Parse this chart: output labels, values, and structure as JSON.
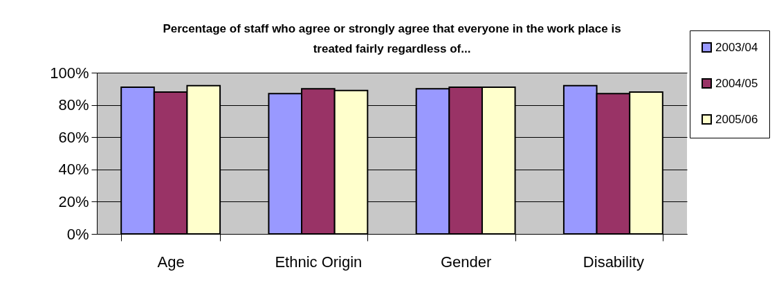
{
  "chart_data": {
    "type": "bar",
    "title": "Percentage of staff who agree or strongly agree that everyone in the work place is treated fairly regardless of...",
    "categories": [
      "Age",
      "Ethnic Origin",
      "Gender",
      "Disability"
    ],
    "series": [
      {
        "name": "2003/04",
        "color": "#9999ff",
        "values": [
          91,
          87,
          90,
          92
        ]
      },
      {
        "name": "2004/05",
        "color": "#993366",
        "values": [
          88,
          90,
          91,
          87
        ]
      },
      {
        "name": "2005/06",
        "color": "#ffffcc",
        "values": [
          92,
          89,
          91,
          88
        ]
      }
    ],
    "ylim": [
      0,
      100
    ],
    "yticks": [
      {
        "value": 0,
        "label": "0%"
      },
      {
        "value": 20,
        "label": "20%"
      },
      {
        "value": 40,
        "label": "40%"
      },
      {
        "value": 60,
        "label": "60%"
      },
      {
        "value": 80,
        "label": "80%"
      },
      {
        "value": 100,
        "label": "100%"
      }
    ],
    "grid": "y",
    "legend": "top right"
  }
}
